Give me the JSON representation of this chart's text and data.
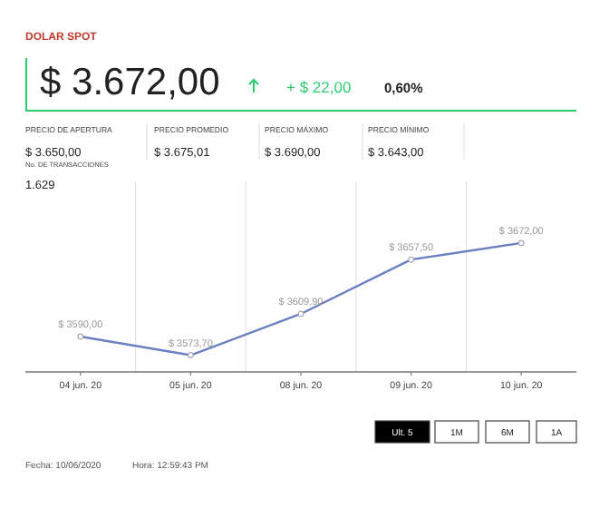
{
  "chart_data": {
    "type": "line",
    "title": "DOLAR SPOT",
    "categories": [
      "04 jun. 20",
      "05 jun. 20",
      "08 jun. 20",
      "09 jun. 20",
      "10 jun. 20"
    ],
    "values": [
      3590,
      3573.7,
      3609.9,
      3657.5,
      3672
    ],
    "value_labels": [
      "$ 3590,00",
      "$ 3573,70",
      "$ 3609,90",
      "$ 3657,50",
      "$ 3672,00"
    ],
    "color": "#6a80c0",
    "ylim": [
      3559,
      3726
    ],
    "grid": "x",
    "marker": "circle",
    "line_style": "solid",
    "tick_labels": "x",
    "annotations": [
      "$ 3.672,00",
      "+ $ 22,00",
      "0,60%",
      "PRECIO DE APERTURA",
      "$ 3.650,00",
      "PRECIO PROMEDIO",
      "$ 3.675,01",
      "PRECIO MÁXIMO",
      "$ 3.690,00",
      "PRECIO MÍNIMO",
      "$ 3.643,00",
      "No. DE TRANSACCIONES",
      "1.629",
      "Ult. 5",
      "1M",
      "6M",
      "1A",
      "Fecha: 10/06/2020",
      "Hora: 12:59:43 PM"
    ]
  }
}
